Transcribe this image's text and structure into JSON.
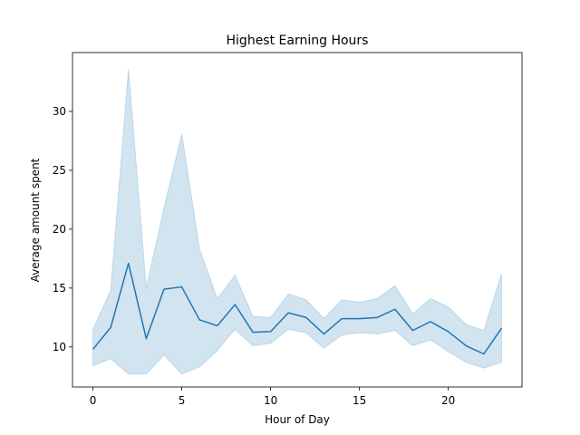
{
  "chart_data": {
    "type": "line",
    "title": "Highest Earning Hours",
    "xlabel": "Hour of Day",
    "ylabel": "Average amount spent",
    "xlim": [
      -1.15,
      24.15
    ],
    "ylim": [
      6.6,
      35
    ],
    "xticks": [
      0,
      5,
      10,
      15,
      20
    ],
    "yticks": [
      10,
      15,
      20,
      25,
      30
    ],
    "grid": false,
    "color": "#1f77b4",
    "x": [
      0,
      1,
      2,
      3,
      4,
      5,
      6,
      7,
      8,
      9,
      10,
      11,
      12,
      13,
      14,
      15,
      16,
      17,
      18,
      19,
      20,
      21,
      22,
      23
    ],
    "series": [
      {
        "values": [
          9.8,
          11.65,
          17.1,
          10.7,
          14.9,
          15.1,
          12.3,
          11.8,
          13.6,
          11.25,
          11.3,
          12.9,
          12.5,
          11.1,
          12.4,
          12.4,
          12.5,
          13.2,
          11.4,
          12.15,
          11.3,
          10.1,
          9.4,
          11.6
        ],
        "ci_low": [
          8.4,
          9.0,
          7.7,
          7.7,
          9.3,
          7.7,
          8.3,
          9.7,
          11.5,
          10.1,
          10.3,
          11.5,
          11.2,
          9.9,
          11.0,
          11.2,
          11.1,
          11.4,
          10.1,
          10.6,
          9.6,
          8.7,
          8.2,
          8.7
        ],
        "ci_high": [
          11.5,
          14.8,
          33.6,
          15.0,
          21.8,
          28.1,
          18.3,
          14.1,
          16.1,
          12.6,
          12.5,
          14.5,
          14.0,
          12.4,
          14.0,
          13.8,
          14.1,
          15.2,
          12.8,
          14.1,
          13.4,
          11.9,
          11.4,
          16.2
        ]
      }
    ]
  }
}
